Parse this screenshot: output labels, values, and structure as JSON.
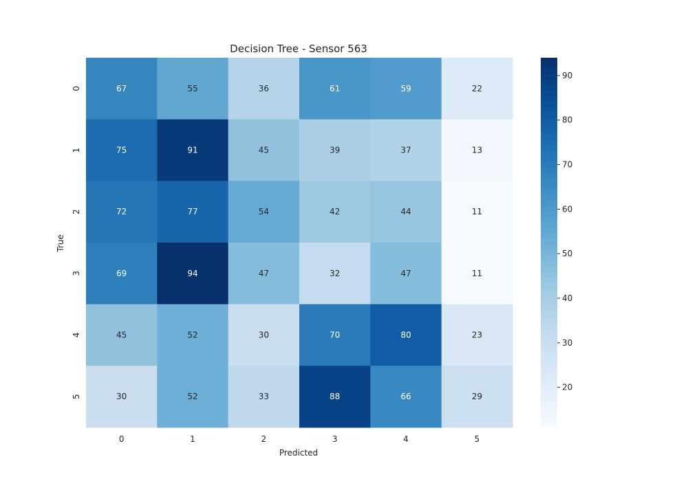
{
  "chart_data": {
    "type": "heatmap",
    "title": "Decision Tree - Sensor 563",
    "xlabel": "Predicted",
    "ylabel": "True",
    "x_categories": [
      "0",
      "1",
      "2",
      "3",
      "4",
      "5"
    ],
    "y_categories": [
      "0",
      "1",
      "2",
      "3",
      "4",
      "5"
    ],
    "values": [
      [
        67,
        55,
        36,
        61,
        59,
        22
      ],
      [
        75,
        91,
        45,
        39,
        37,
        13
      ],
      [
        72,
        77,
        54,
        42,
        44,
        11
      ],
      [
        69,
        94,
        47,
        32,
        47,
        11
      ],
      [
        45,
        52,
        30,
        70,
        80,
        23
      ],
      [
        30,
        52,
        33,
        88,
        66,
        29
      ]
    ],
    "colormap": "Blues",
    "value_range": [
      11,
      94
    ],
    "colorbar_ticks": [
      20,
      30,
      40,
      50,
      60,
      70,
      80,
      90
    ],
    "annotated": true,
    "grid": false
  }
}
